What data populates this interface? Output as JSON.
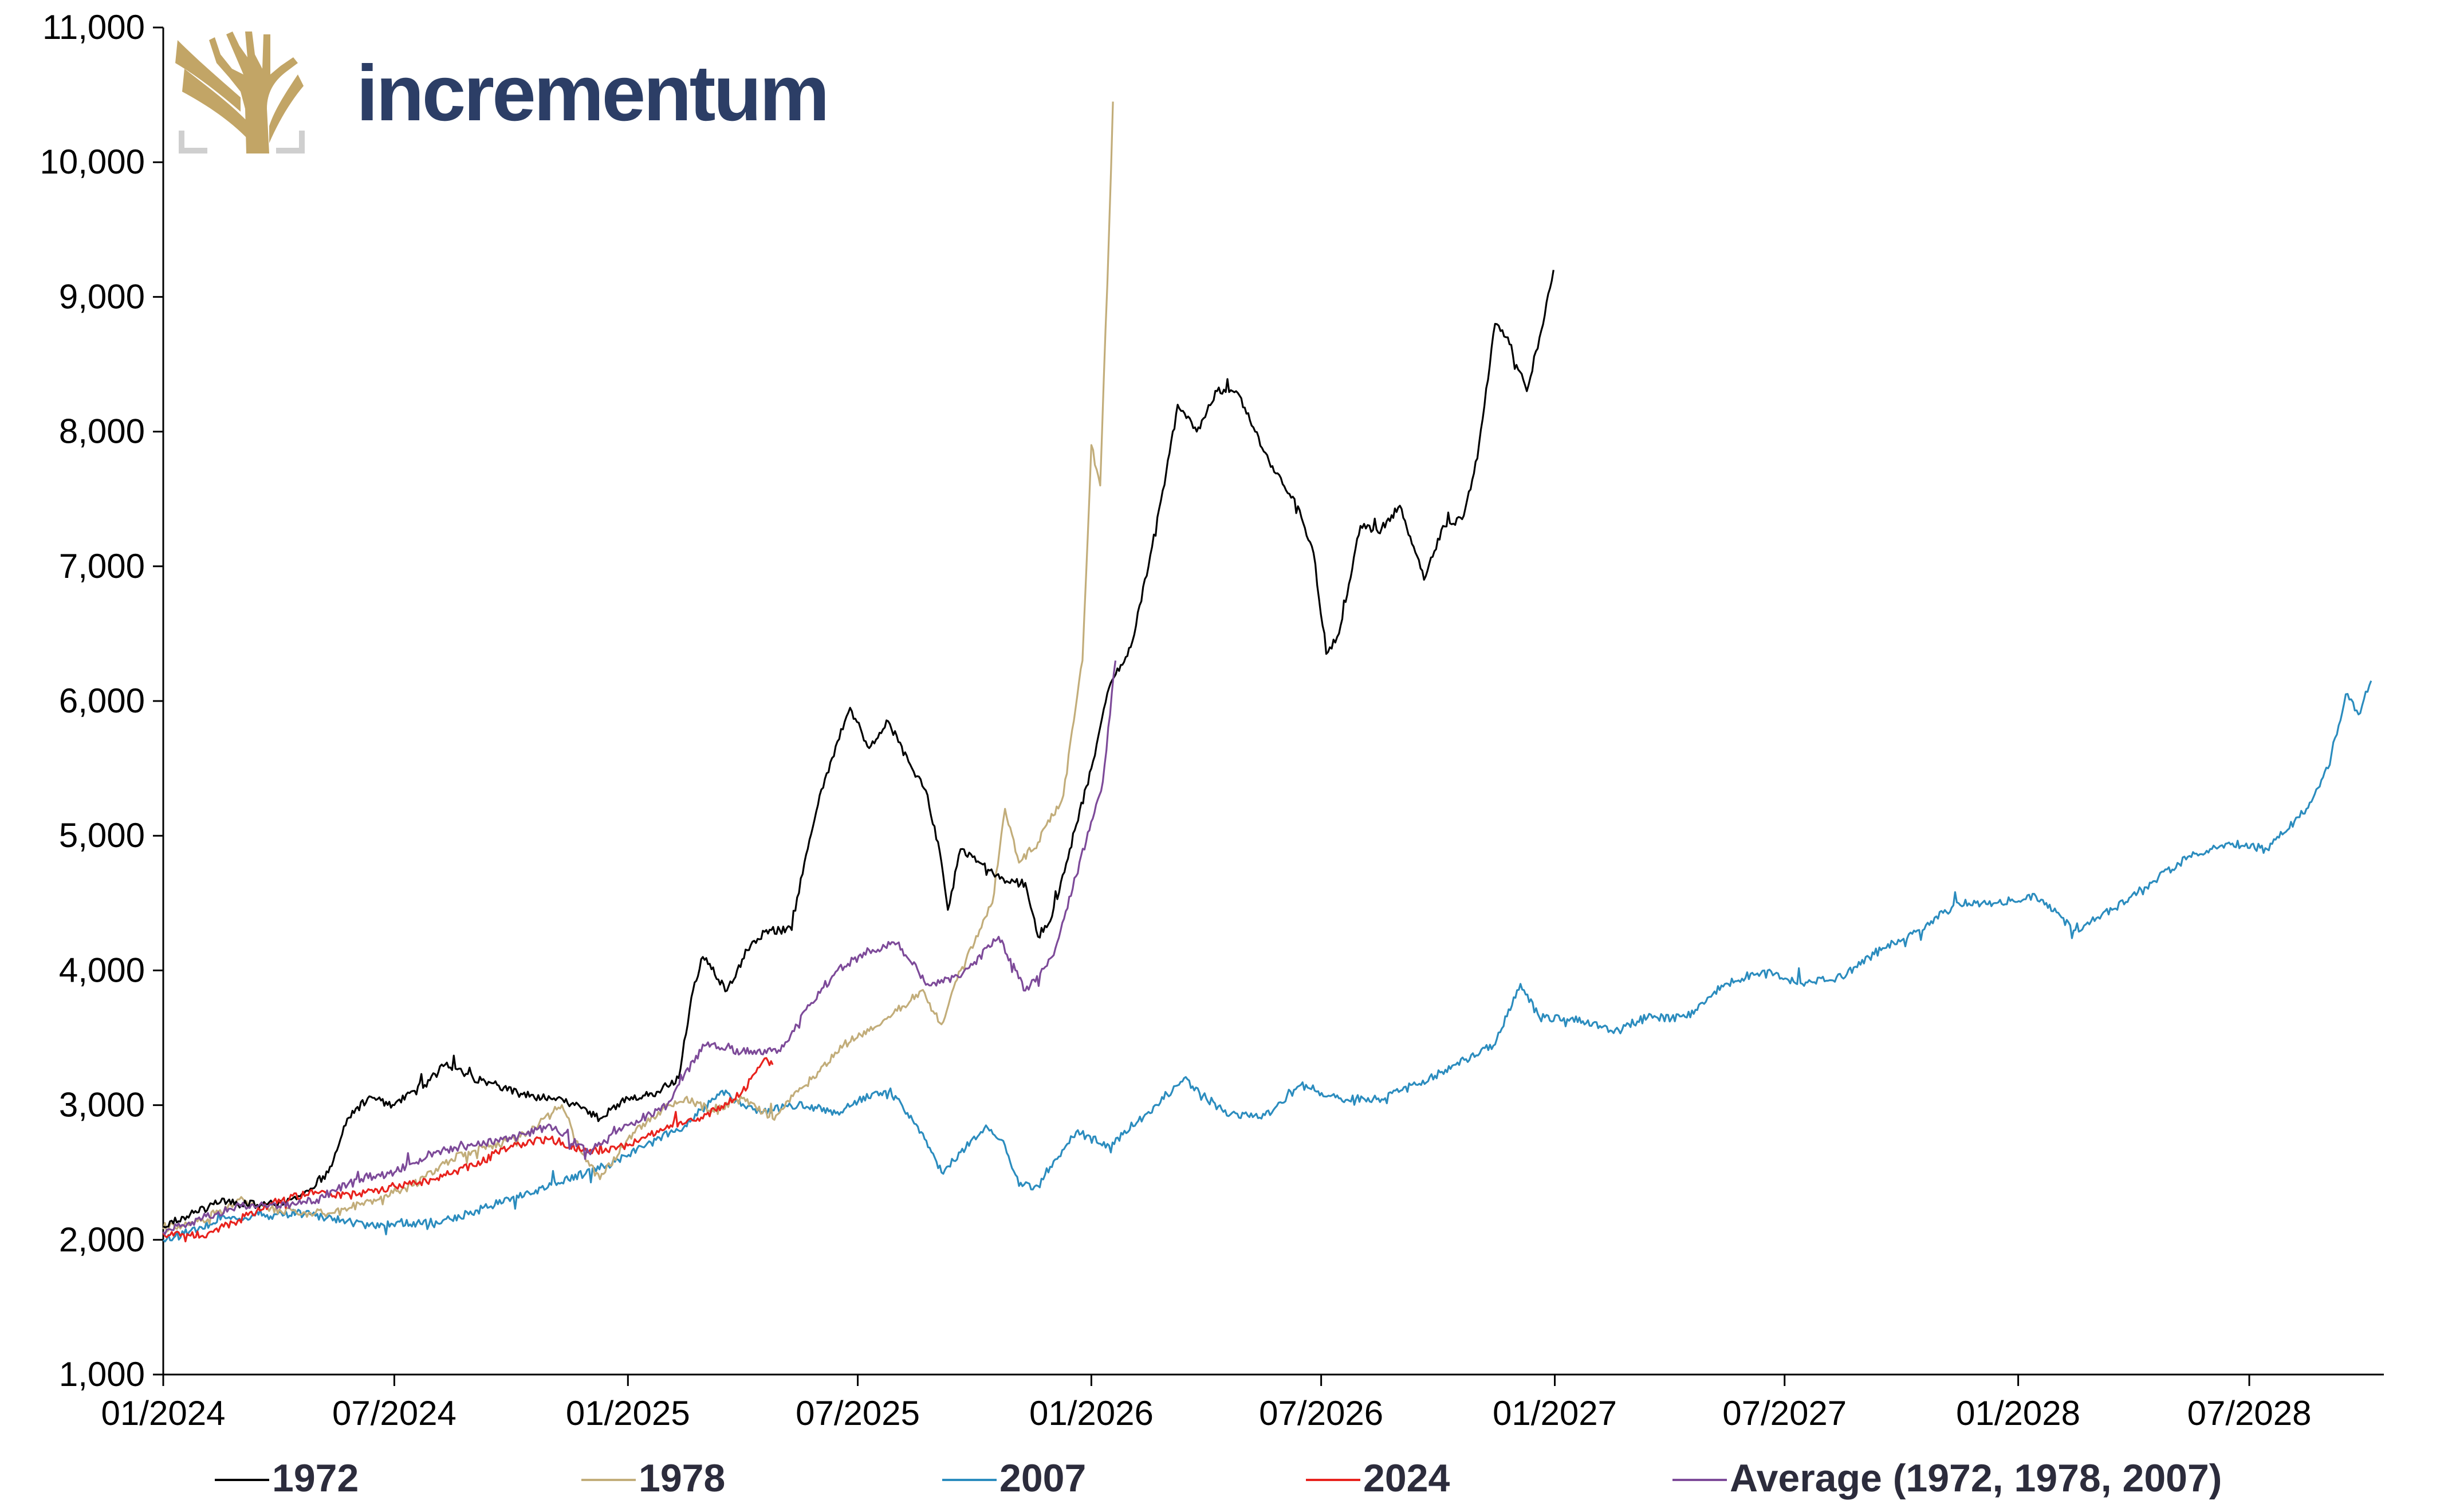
{
  "brand": {
    "name": "incrementum",
    "logo_icon": "tree-icon",
    "text_color": "#2c3e66",
    "logo_color": "#c2a566"
  },
  "chart_data": {
    "type": "line",
    "title": "",
    "xlabel": "",
    "ylabel": "",
    "ylim": [
      1000,
      11000
    ],
    "yticks": [
      "1,000",
      "2,000",
      "3,000",
      "4,000",
      "5,000",
      "6,000",
      "7,000",
      "8,000",
      "9,000",
      "10,000",
      "11,000"
    ],
    "xlim": [
      "2024-01-01",
      "2028-10-15"
    ],
    "xticks": [
      "01/2024",
      "07/2024",
      "01/2025",
      "07/2025",
      "01/2026",
      "07/2026",
      "01/2027",
      "07/2027",
      "01/2028",
      "07/2028"
    ],
    "grid": false,
    "legend": "bottom",
    "series": [
      {
        "name": "1972",
        "color": "#000000",
        "points": [
          [
            "2024-01-01",
            2100
          ],
          [
            "2024-01-25",
            2200
          ],
          [
            "2024-02-15",
            2280
          ],
          [
            "2024-03-15",
            2260
          ],
          [
            "2024-04-15",
            2300
          ],
          [
            "2024-05-10",
            2500
          ],
          [
            "2024-05-25",
            2900
          ],
          [
            "2024-06-10",
            3050
          ],
          [
            "2024-07-01",
            3000
          ],
          [
            "2024-07-25",
            3150
          ],
          [
            "2024-08-10",
            3300
          ],
          [
            "2024-09-01",
            3200
          ],
          [
            "2024-09-20",
            3150
          ],
          [
            "2024-10-10",
            3080
          ],
          [
            "2024-11-01",
            3050
          ],
          [
            "2024-11-20",
            3000
          ],
          [
            "2024-12-10",
            2900
          ],
          [
            "2025-01-01",
            3050
          ],
          [
            "2025-01-25",
            3100
          ],
          [
            "2025-02-10",
            3200
          ],
          [
            "2025-02-20",
            3800
          ],
          [
            "2025-03-01",
            4100
          ],
          [
            "2025-03-20",
            3850
          ],
          [
            "2025-04-05",
            4150
          ],
          [
            "2025-04-20",
            4300
          ],
          [
            "2025-05-10",
            4300
          ],
          [
            "2025-05-20",
            4800
          ],
          [
            "2025-06-01",
            5300
          ],
          [
            "2025-06-15",
            5700
          ],
          [
            "2025-06-25",
            5950
          ],
          [
            "2025-07-10",
            5650
          ],
          [
            "2025-07-25",
            5850
          ],
          [
            "2025-08-10",
            5550
          ],
          [
            "2025-08-25",
            5300
          ],
          [
            "2025-09-05",
            4800
          ],
          [
            "2025-09-10",
            4450
          ],
          [
            "2025-09-20",
            4900
          ],
          [
            "2025-10-05",
            4800
          ],
          [
            "2025-10-25",
            4650
          ],
          [
            "2025-11-10",
            4650
          ],
          [
            "2025-11-20",
            4250
          ],
          [
            "2025-12-01",
            4400
          ],
          [
            "2025-12-15",
            4900
          ],
          [
            "2026-01-01",
            5500
          ],
          [
            "2026-01-15",
            6100
          ],
          [
            "2026-02-01",
            6400
          ],
          [
            "2026-02-15",
            7000
          ],
          [
            "2026-03-01",
            7700
          ],
          [
            "2026-03-10",
            8200
          ],
          [
            "2026-03-25",
            8000
          ],
          [
            "2026-04-10",
            8300
          ],
          [
            "2026-04-25",
            8300
          ],
          [
            "2026-05-10",
            8000
          ],
          [
            "2026-05-25",
            7700
          ],
          [
            "2026-06-10",
            7500
          ],
          [
            "2026-06-25",
            7100
          ],
          [
            "2026-07-05",
            6350
          ],
          [
            "2026-07-15",
            6500
          ],
          [
            "2026-08-01",
            7300
          ],
          [
            "2026-08-15",
            7250
          ],
          [
            "2026-09-01",
            7450
          ],
          [
            "2026-09-20",
            6900
          ],
          [
            "2026-10-05",
            7300
          ],
          [
            "2026-10-20",
            7350
          ],
          [
            "2026-11-01",
            7800
          ],
          [
            "2026-11-15",
            8800
          ],
          [
            "2026-11-25",
            8700
          ],
          [
            "2026-12-10",
            8300
          ],
          [
            "2026-12-20",
            8700
          ],
          [
            "2026-12-31",
            9200
          ]
        ]
      },
      {
        "name": "1978",
        "color": "#c2ad7a",
        "points": [
          [
            "2024-01-01",
            2080
          ],
          [
            "2024-02-01",
            2150
          ],
          [
            "2024-03-01",
            2300
          ],
          [
            "2024-03-15",
            2250
          ],
          [
            "2024-04-15",
            2200
          ],
          [
            "2024-05-15",
            2200
          ],
          [
            "2024-06-15",
            2300
          ],
          [
            "2024-07-15",
            2400
          ],
          [
            "2024-08-15",
            2600
          ],
          [
            "2024-09-15",
            2700
          ],
          [
            "2024-10-15",
            2800
          ],
          [
            "2024-11-10",
            3000
          ],
          [
            "2024-11-25",
            2650
          ],
          [
            "2024-12-10",
            2450
          ],
          [
            "2025-01-01",
            2750
          ],
          [
            "2025-01-25",
            2950
          ],
          [
            "2025-02-15",
            3050
          ],
          [
            "2025-03-10",
            2950
          ],
          [
            "2025-04-01",
            3050
          ],
          [
            "2025-04-25",
            2900
          ],
          [
            "2025-05-15",
            3100
          ],
          [
            "2025-06-01",
            3250
          ],
          [
            "2025-06-20",
            3450
          ],
          [
            "2025-07-10",
            3550
          ],
          [
            "2025-08-01",
            3700
          ],
          [
            "2025-08-20",
            3850
          ],
          [
            "2025-09-05",
            3600
          ],
          [
            "2025-09-20",
            4000
          ],
          [
            "2025-10-05",
            4300
          ],
          [
            "2025-10-15",
            4500
          ],
          [
            "2025-10-25",
            5200
          ],
          [
            "2025-11-05",
            4800
          ],
          [
            "2025-11-20",
            4950
          ],
          [
            "2025-12-10",
            5300
          ],
          [
            "2025-12-25",
            6300
          ],
          [
            "2026-01-01",
            7900
          ],
          [
            "2026-01-08",
            7600
          ],
          [
            "2026-01-15",
            9500
          ],
          [
            "2026-01-18",
            10450
          ]
        ]
      },
      {
        "name": "2007",
        "color": "#2b8cbe",
        "points": [
          [
            "2024-01-01",
            2000
          ],
          [
            "2024-02-15",
            2150
          ],
          [
            "2024-04-15",
            2200
          ],
          [
            "2024-06-15",
            2100
          ],
          [
            "2024-08-15",
            2150
          ],
          [
            "2024-10-15",
            2350
          ],
          [
            "2024-12-15",
            2550
          ],
          [
            "2025-01-15",
            2700
          ],
          [
            "2025-02-15",
            2850
          ],
          [
            "2025-03-15",
            3100
          ],
          [
            "2025-04-15",
            2950
          ],
          [
            "2025-05-15",
            3000
          ],
          [
            "2025-06-15",
            2950
          ],
          [
            "2025-07-15",
            3100
          ],
          [
            "2025-08-01",
            3050
          ],
          [
            "2025-08-20",
            2800
          ],
          [
            "2025-09-05",
            2500
          ],
          [
            "2025-09-20",
            2650
          ],
          [
            "2025-10-10",
            2850
          ],
          [
            "2025-10-25",
            2700
          ],
          [
            "2025-11-05",
            2400
          ],
          [
            "2025-11-20",
            2400
          ],
          [
            "2025-12-05",
            2600
          ],
          [
            "2025-12-20",
            2800
          ],
          [
            "2026-01-15",
            2700
          ],
          [
            "2026-02-15",
            2950
          ],
          [
            "2026-03-15",
            3200
          ],
          [
            "2026-04-15",
            2950
          ],
          [
            "2026-05-15",
            2900
          ],
          [
            "2026-06-15",
            3150
          ],
          [
            "2026-07-15",
            3050
          ],
          [
            "2026-08-15",
            3050
          ],
          [
            "2026-09-15",
            3150
          ],
          [
            "2026-10-15",
            3300
          ],
          [
            "2026-11-15",
            3450
          ],
          [
            "2026-12-05",
            3900
          ],
          [
            "2026-12-20",
            3650
          ],
          [
            "2027-01-15",
            3650
          ],
          [
            "2027-02-15",
            3550
          ],
          [
            "2027-03-15",
            3650
          ],
          [
            "2027-04-15",
            3650
          ],
          [
            "2027-05-15",
            3900
          ],
          [
            "2027-06-15",
            4000
          ],
          [
            "2027-07-15",
            3900
          ],
          [
            "2027-08-15",
            3950
          ],
          [
            "2027-09-15",
            4150
          ],
          [
            "2027-10-15",
            4300
          ],
          [
            "2027-11-15",
            4500
          ],
          [
            "2027-12-15",
            4500
          ],
          [
            "2028-01-15",
            4550
          ],
          [
            "2028-02-15",
            4300
          ],
          [
            "2028-03-15",
            4450
          ],
          [
            "2028-04-15",
            4650
          ],
          [
            "2028-05-15",
            4850
          ],
          [
            "2028-06-15",
            4950
          ],
          [
            "2028-07-15",
            4900
          ],
          [
            "2028-08-15",
            5200
          ],
          [
            "2028-09-01",
            5500
          ],
          [
            "2028-09-15",
            6050
          ],
          [
            "2028-09-25",
            5900
          ],
          [
            "2028-10-05",
            6150
          ]
        ]
      },
      {
        "name": "2024",
        "color": "#e8221d",
        "points": [
          [
            "2024-01-01",
            2050
          ],
          [
            "2024-02-01",
            2030
          ],
          [
            "2024-03-01",
            2150
          ],
          [
            "2024-04-01",
            2300
          ],
          [
            "2024-05-01",
            2350
          ],
          [
            "2024-06-01",
            2330
          ],
          [
            "2024-07-01",
            2400
          ],
          [
            "2024-08-01",
            2450
          ],
          [
            "2024-09-01",
            2550
          ],
          [
            "2024-10-01",
            2700
          ],
          [
            "2024-11-01",
            2750
          ],
          [
            "2024-12-01",
            2650
          ],
          [
            "2025-01-01",
            2700
          ],
          [
            "2025-02-01",
            2850
          ],
          [
            "2025-03-01",
            2900
          ],
          [
            "2025-04-01",
            3100
          ],
          [
            "2025-04-20",
            3350
          ],
          [
            "2025-04-25",
            3300
          ]
        ]
      },
      {
        "name": "Average (1972, 1978, 2007)",
        "color": "#7d4a99",
        "points": [
          [
            "2024-01-01",
            2060
          ],
          [
            "2024-02-01",
            2160
          ],
          [
            "2024-03-01",
            2260
          ],
          [
            "2024-04-01",
            2250
          ],
          [
            "2024-05-01",
            2300
          ],
          [
            "2024-06-01",
            2450
          ],
          [
            "2024-07-01",
            2500
          ],
          [
            "2024-08-01",
            2650
          ],
          [
            "2024-09-01",
            2700
          ],
          [
            "2024-10-01",
            2750
          ],
          [
            "2024-11-01",
            2850
          ],
          [
            "2024-12-01",
            2650
          ],
          [
            "2025-01-01",
            2850
          ],
          [
            "2025-02-01",
            3000
          ],
          [
            "2025-03-01",
            3450
          ],
          [
            "2025-04-01",
            3400
          ],
          [
            "2025-05-01",
            3400
          ],
          [
            "2025-05-20",
            3700
          ],
          [
            "2025-06-15",
            4000
          ],
          [
            "2025-07-10",
            4150
          ],
          [
            "2025-08-01",
            4200
          ],
          [
            "2025-08-25",
            3900
          ],
          [
            "2025-09-20",
            3950
          ],
          [
            "2025-10-20",
            4250
          ],
          [
            "2025-11-10",
            3850
          ],
          [
            "2025-12-01",
            4100
          ],
          [
            "2025-12-20",
            4700
          ],
          [
            "2026-01-10",
            5400
          ],
          [
            "2026-01-20",
            6300
          ]
        ]
      }
    ]
  }
}
